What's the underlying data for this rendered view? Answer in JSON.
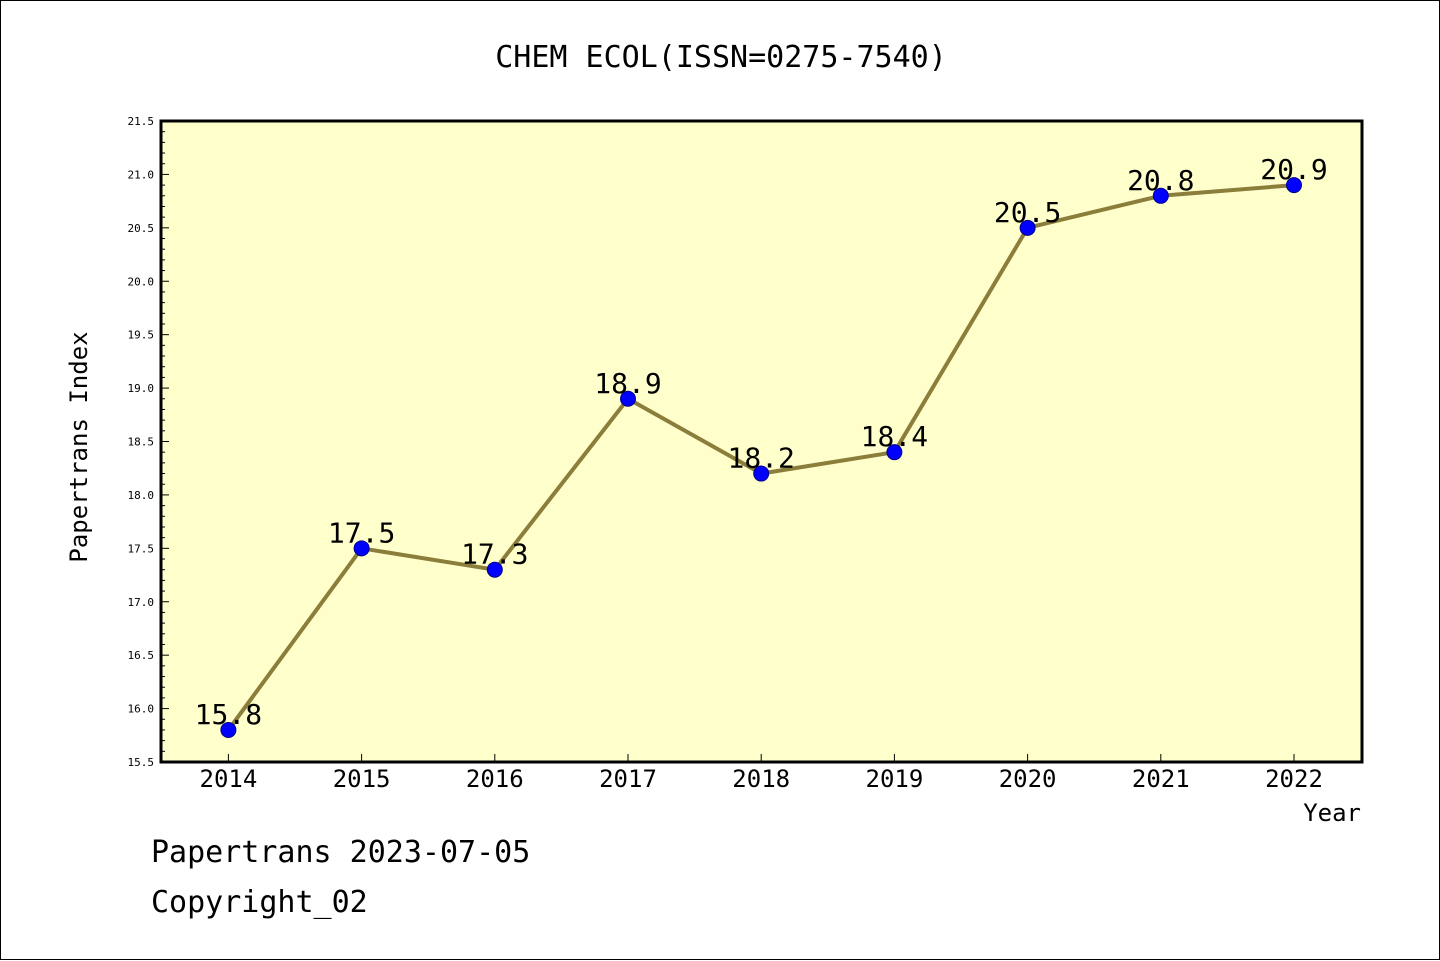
{
  "chart_data": {
    "type": "line",
    "title": "CHEM ECOL(ISSN=0275-7540)",
    "xlabel": "Year",
    "ylabel": "Papertrans Index",
    "categories": [
      "2014",
      "2015",
      "2016",
      "2017",
      "2018",
      "2019",
      "2020",
      "2021",
      "2022"
    ],
    "series": [
      {
        "values": [
          15.8,
          17.5,
          17.3,
          18.9,
          18.2,
          18.4,
          20.5,
          20.8,
          20.9
        ],
        "labels": [
          "15.8",
          "17.5",
          "17.3",
          "18.9",
          "18.2",
          "18.4",
          "20.5",
          "20.8",
          "20.9"
        ]
      }
    ],
    "ylim": [
      15.5,
      21.5
    ],
    "yticks": [
      "15.5",
      "16.0",
      "16.5",
      "17.0",
      "17.5",
      "18.0",
      "18.5",
      "19.0",
      "19.5",
      "20.0",
      "20.5",
      "21.0",
      "21.5"
    ],
    "grid": false,
    "legend": "none",
    "colors": {
      "plot_background": "#ffffcc",
      "line": "#8b7d3a",
      "marker": "#0000ff",
      "marker_edge": "#00008b"
    }
  },
  "footer": {
    "date_line": "Papertrans 2023-07-05",
    "copyright_line": "Copyright_02"
  }
}
